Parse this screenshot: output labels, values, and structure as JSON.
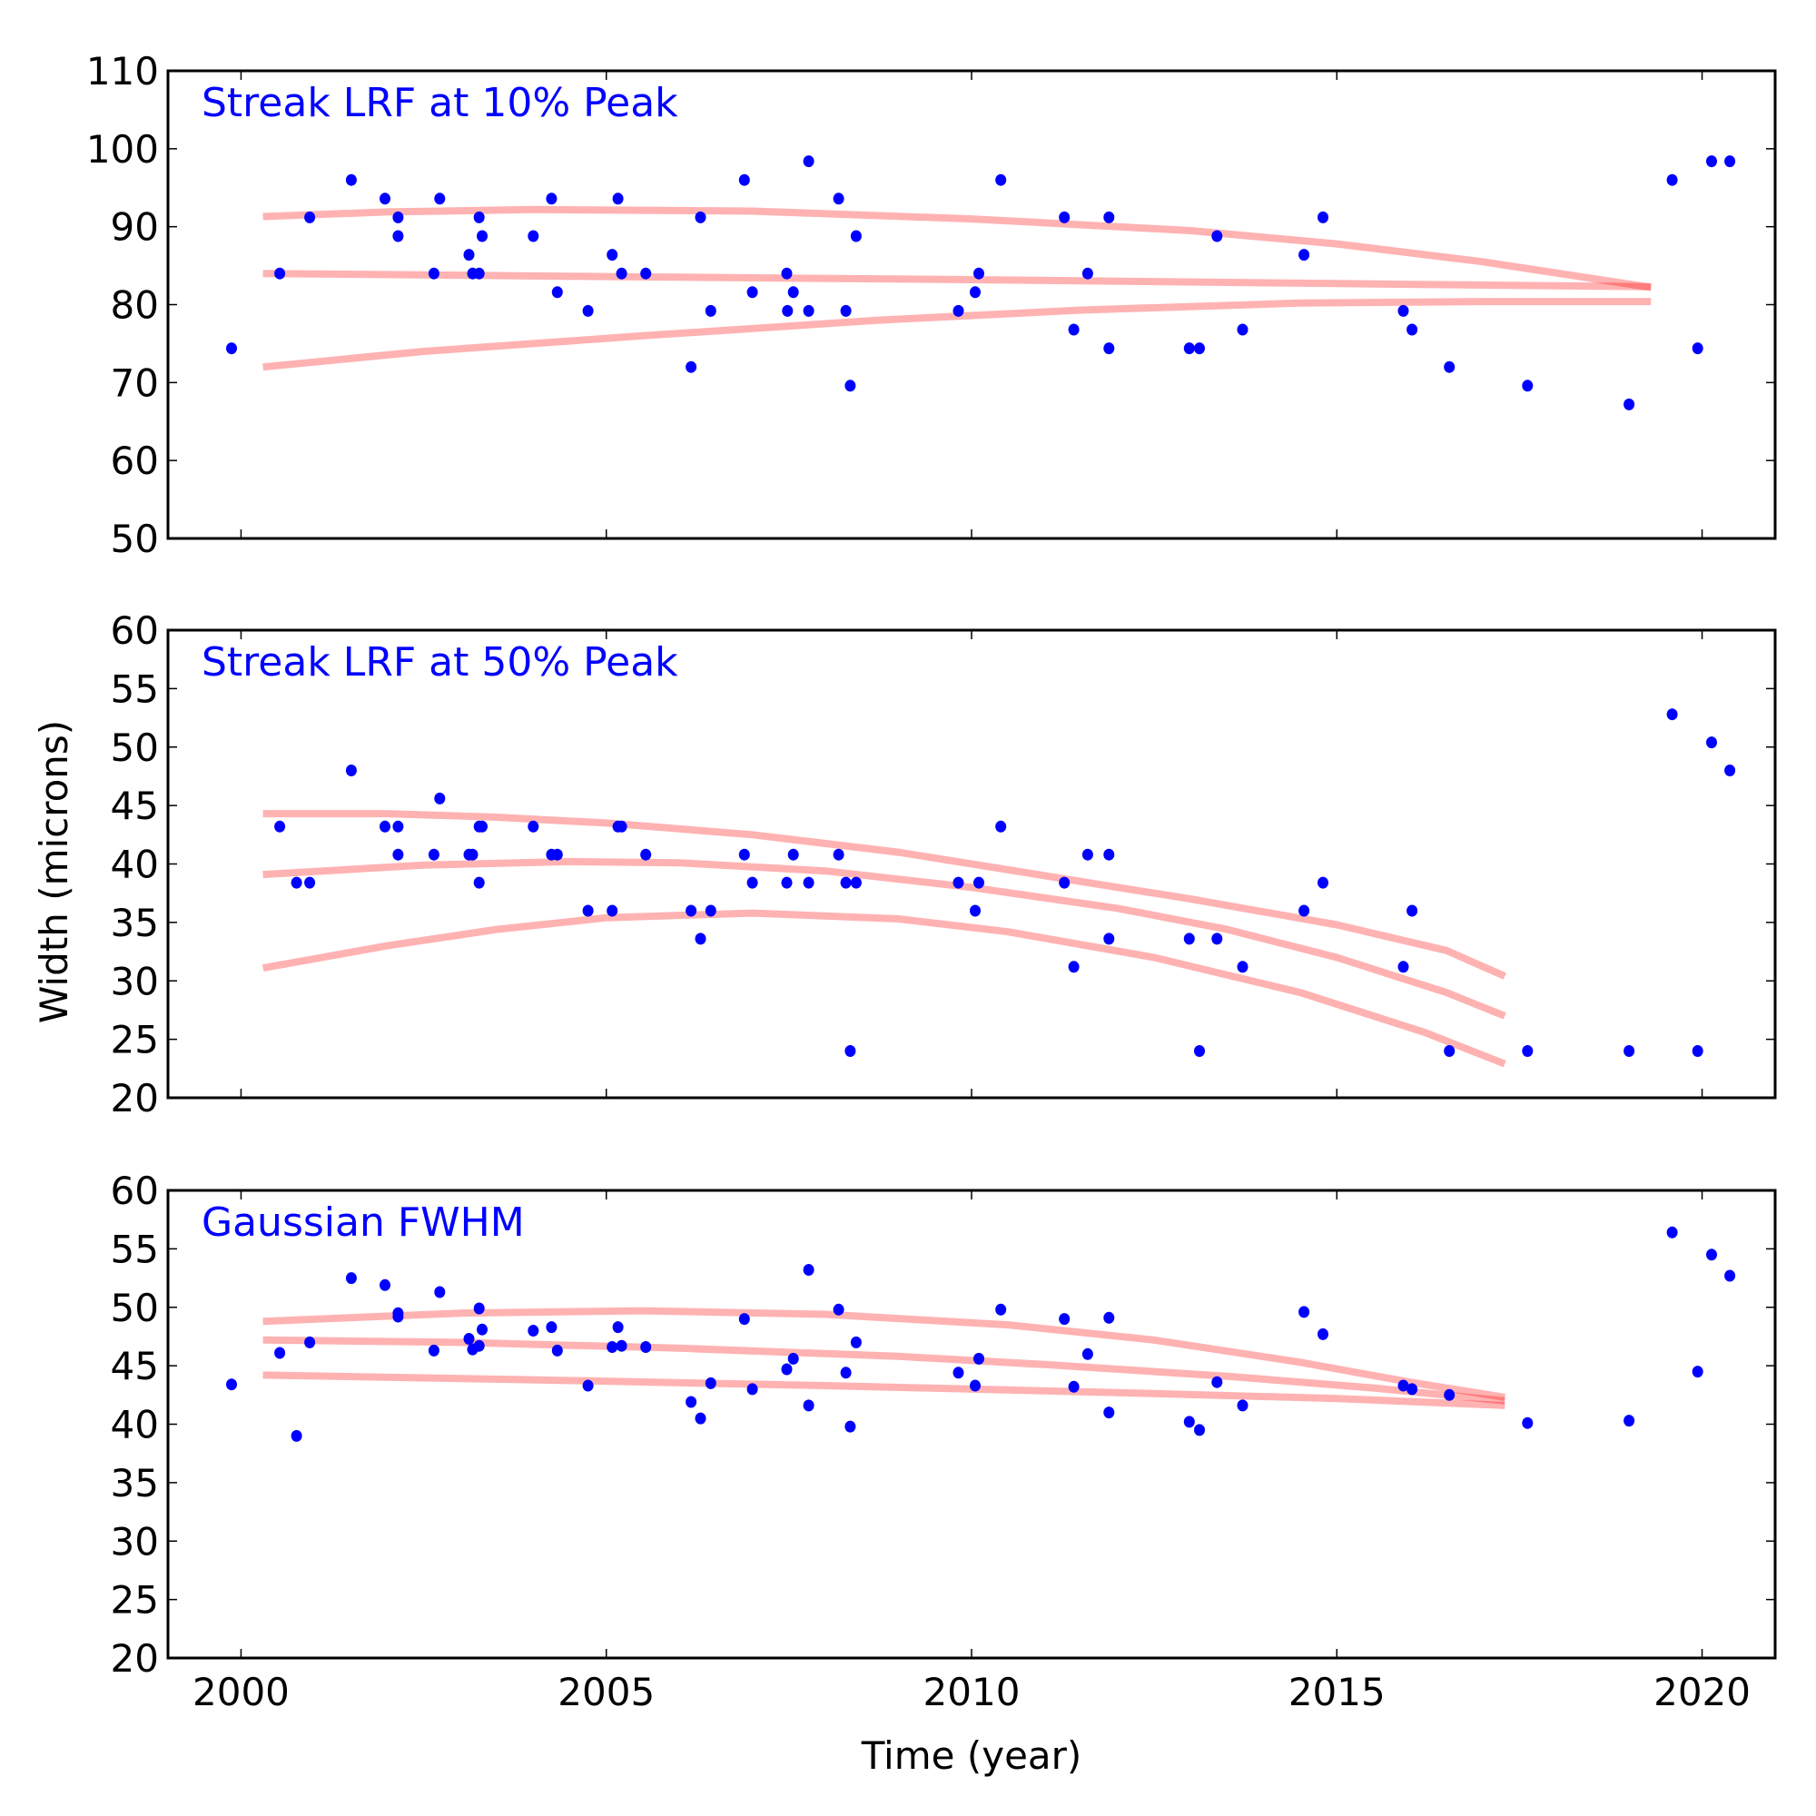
{
  "chart_data": [
    {
      "type": "scatter",
      "title": "Streak LRF at 10% Peak",
      "xlabel": "",
      "ylabel": "",
      "xlim": [
        1999,
        2021
      ],
      "ylim": [
        50,
        110
      ],
      "yticks": [
        "50",
        "60",
        "70",
        "80",
        "90",
        "100",
        "110"
      ],
      "ytick_values": [
        50,
        60,
        70,
        80,
        90,
        100,
        110
      ],
      "xtick_values": [
        2000,
        2005,
        2010,
        2015,
        2020
      ],
      "show_xtick_labels": false,
      "title_color": "#0000ff",
      "point_color": "#0000ff",
      "fit_color": "#ff0000",
      "points": [
        [
          1999.87,
          74.4
        ],
        [
          2000.53,
          84.0
        ],
        [
          2000.94,
          91.2
        ],
        [
          2001.51,
          96.0
        ],
        [
          2001.97,
          93.6
        ],
        [
          2002.15,
          91.2
        ],
        [
          2002.15,
          88.8
        ],
        [
          2002.64,
          84.0
        ],
        [
          2002.72,
          93.6
        ],
        [
          2003.12,
          86.4
        ],
        [
          2003.17,
          84.0
        ],
        [
          2003.26,
          84.0
        ],
        [
          2003.26,
          91.2
        ],
        [
          2003.3,
          88.8
        ],
        [
          2004.0,
          88.8
        ],
        [
          2004.25,
          93.6
        ],
        [
          2004.33,
          81.6
        ],
        [
          2004.75,
          79.2
        ],
        [
          2005.08,
          86.4
        ],
        [
          2005.16,
          93.6
        ],
        [
          2005.21,
          84.0
        ],
        [
          2005.54,
          84.0
        ],
        [
          2006.16,
          72.0
        ],
        [
          2006.29,
          91.2
        ],
        [
          2006.43,
          79.2
        ],
        [
          2006.89,
          96.0
        ],
        [
          2007.0,
          81.6
        ],
        [
          2007.47,
          84.0
        ],
        [
          2007.48,
          79.2
        ],
        [
          2007.56,
          81.6
        ],
        [
          2007.77,
          79.2
        ],
        [
          2007.77,
          98.4
        ],
        [
          2008.18,
          93.6
        ],
        [
          2008.28,
          79.2
        ],
        [
          2008.34,
          69.6
        ],
        [
          2008.42,
          88.8
        ],
        [
          2009.82,
          79.2
        ],
        [
          2010.05,
          81.6
        ],
        [
          2010.1,
          84.0
        ],
        [
          2010.4,
          96.0
        ],
        [
          2011.27,
          91.2
        ],
        [
          2011.4,
          76.8
        ],
        [
          2011.59,
          84.0
        ],
        [
          2011.88,
          91.2
        ],
        [
          2011.88,
          74.4
        ],
        [
          2012.98,
          74.4
        ],
        [
          2013.12,
          74.4
        ],
        [
          2013.36,
          88.8
        ],
        [
          2013.71,
          76.8
        ],
        [
          2014.55,
          86.4
        ],
        [
          2014.81,
          91.2
        ],
        [
          2015.91,
          79.2
        ],
        [
          2016.03,
          76.8
        ],
        [
          2016.54,
          72.0
        ],
        [
          2017.61,
          69.6
        ],
        [
          2019.0,
          67.2
        ],
        [
          2019.59,
          96.0
        ],
        [
          2019.94,
          74.4
        ],
        [
          2020.13,
          98.4
        ],
        [
          2020.38,
          98.4
        ]
      ],
      "fits": [
        {
          "name": "upper",
          "x": [
            2000.3,
            2002,
            2004,
            2007,
            2010,
            2013,
            2015,
            2017,
            2019.3
          ],
          "y": [
            91.3,
            91.9,
            92.2,
            92.0,
            91.0,
            89.5,
            87.8,
            85.5,
            82.2
          ]
        },
        {
          "name": "center",
          "x": [
            2000.3,
            2005,
            2010,
            2015,
            2019.3
          ],
          "y": [
            84.0,
            83.6,
            83.2,
            82.7,
            82.3
          ]
        },
        {
          "name": "lower",
          "x": [
            2000.3,
            2002.5,
            2005.5,
            2008.7,
            2011.5,
            2014.5,
            2017,
            2019.3
          ],
          "y": [
            72.0,
            74.0,
            76.0,
            78.0,
            79.3,
            80.2,
            80.4,
            80.4
          ]
        }
      ]
    },
    {
      "type": "scatter",
      "title": "Streak LRF at 50% Peak",
      "xlabel": "",
      "ylabel": "Width (microns)",
      "xlim": [
        1999,
        2021
      ],
      "ylim": [
        20,
        60
      ],
      "yticks": [
        "20",
        "25",
        "30",
        "35",
        "40",
        "45",
        "50",
        "55",
        "60"
      ],
      "ytick_values": [
        20,
        25,
        30,
        35,
        40,
        45,
        50,
        55,
        60
      ],
      "xtick_values": [
        2000,
        2005,
        2010,
        2015,
        2020
      ],
      "show_xtick_labels": false,
      "title_color": "#0000ff",
      "point_color": "#0000ff",
      "fit_color": "#ff0000",
      "points": [
        [
          2000.53,
          43.2
        ],
        [
          2000.76,
          38.4
        ],
        [
          2000.94,
          38.4
        ],
        [
          2001.51,
          48.0
        ],
        [
          2001.97,
          43.2
        ],
        [
          2002.15,
          43.2
        ],
        [
          2002.15,
          40.8
        ],
        [
          2002.64,
          40.8
        ],
        [
          2002.72,
          45.6
        ],
        [
          2003.12,
          40.8
        ],
        [
          2003.17,
          40.8
        ],
        [
          2003.26,
          38.4
        ],
        [
          2003.26,
          43.2
        ],
        [
          2003.3,
          43.2
        ],
        [
          2004.0,
          43.2
        ],
        [
          2004.25,
          40.8
        ],
        [
          2004.33,
          40.8
        ],
        [
          2004.75,
          36.0
        ],
        [
          2005.08,
          36.0
        ],
        [
          2005.16,
          43.2
        ],
        [
          2005.21,
          43.2
        ],
        [
          2005.54,
          40.8
        ],
        [
          2006.16,
          36.0
        ],
        [
          2006.29,
          33.6
        ],
        [
          2006.43,
          36.0
        ],
        [
          2006.89,
          40.8
        ],
        [
          2007.0,
          38.4
        ],
        [
          2007.47,
          38.4
        ],
        [
          2007.56,
          40.8
        ],
        [
          2007.77,
          38.4
        ],
        [
          2008.18,
          40.8
        ],
        [
          2008.28,
          38.4
        ],
        [
          2008.34,
          24.0
        ],
        [
          2008.42,
          38.4
        ],
        [
          2009.82,
          38.4
        ],
        [
          2010.05,
          36.0
        ],
        [
          2010.1,
          38.4
        ],
        [
          2010.4,
          43.2
        ],
        [
          2011.27,
          38.4
        ],
        [
          2011.4,
          31.2
        ],
        [
          2011.59,
          40.8
        ],
        [
          2011.88,
          40.8
        ],
        [
          2011.88,
          33.6
        ],
        [
          2012.98,
          33.6
        ],
        [
          2013.12,
          24.0
        ],
        [
          2013.36,
          33.6
        ],
        [
          2013.71,
          31.2
        ],
        [
          2014.55,
          36.0
        ],
        [
          2014.81,
          38.4
        ],
        [
          2015.91,
          31.2
        ],
        [
          2016.03,
          36.0
        ],
        [
          2016.54,
          24.0
        ],
        [
          2017.61,
          24.0
        ],
        [
          2019.0,
          24.0
        ],
        [
          2019.59,
          52.8
        ],
        [
          2019.94,
          24.0
        ],
        [
          2020.13,
          50.4
        ],
        [
          2020.38,
          48.0
        ]
      ],
      "fits": [
        {
          "name": "upper",
          "x": [
            2000.3,
            2002,
            2003.5,
            2005,
            2007,
            2009,
            2011,
            2013,
            2015,
            2016.5,
            2017.3
          ],
          "y": [
            44.3,
            44.3,
            44.0,
            43.5,
            42.5,
            41.0,
            39.0,
            37.0,
            34.8,
            32.6,
            30.4
          ]
        },
        {
          "name": "center",
          "x": [
            2000.3,
            2002.5,
            2004.5,
            2006,
            2008,
            2010,
            2012,
            2013.5,
            2015,
            2016.5,
            2017.3
          ],
          "y": [
            39.1,
            39.9,
            40.2,
            40.1,
            39.4,
            38.0,
            36.2,
            34.4,
            32.0,
            29.0,
            27.0
          ]
        },
        {
          "name": "lower",
          "x": [
            2000.3,
            2002,
            2003.5,
            2005,
            2007,
            2009,
            2010.5,
            2012.5,
            2014.5,
            2016.2,
            2017.3
          ],
          "y": [
            31.1,
            33.0,
            34.4,
            35.4,
            35.8,
            35.3,
            34.2,
            32.0,
            29.0,
            25.6,
            22.9
          ]
        }
      ]
    },
    {
      "type": "scatter",
      "title": "Gaussian FWHM",
      "xlabel": "Time (year)",
      "ylabel": "",
      "xlim": [
        1999,
        2021
      ],
      "ylim": [
        20,
        60
      ],
      "yticks": [
        "20",
        "25",
        "30",
        "35",
        "40",
        "45",
        "50",
        "55",
        "60"
      ],
      "ytick_values": [
        20,
        25,
        30,
        35,
        40,
        45,
        50,
        55,
        60
      ],
      "xticks": [
        "2000",
        "2005",
        "2010",
        "2015",
        "2020"
      ],
      "xtick_values": [
        2000,
        2005,
        2010,
        2015,
        2020
      ],
      "show_xtick_labels": true,
      "title_color": "#0000ff",
      "point_color": "#0000ff",
      "fit_color": "#ff0000",
      "points": [
        [
          1999.87,
          43.4
        ],
        [
          2000.53,
          46.1
        ],
        [
          2000.76,
          39.0
        ],
        [
          2000.94,
          47.0
        ],
        [
          2001.51,
          52.5
        ],
        [
          2001.97,
          51.9
        ],
        [
          2002.15,
          49.5
        ],
        [
          2002.15,
          49.2
        ],
        [
          2002.64,
          46.3
        ],
        [
          2002.72,
          51.3
        ],
        [
          2003.12,
          47.3
        ],
        [
          2003.17,
          46.4
        ],
        [
          2003.26,
          49.9
        ],
        [
          2003.26,
          46.7
        ],
        [
          2003.3,
          48.1
        ],
        [
          2004.0,
          48.0
        ],
        [
          2004.25,
          48.3
        ],
        [
          2004.33,
          46.3
        ],
        [
          2004.75,
          43.3
        ],
        [
          2005.08,
          46.6
        ],
        [
          2005.16,
          48.3
        ],
        [
          2005.21,
          46.7
        ],
        [
          2005.54,
          46.6
        ],
        [
          2006.16,
          41.9
        ],
        [
          2006.29,
          40.5
        ],
        [
          2006.43,
          43.5
        ],
        [
          2006.89,
          49.0
        ],
        [
          2007.0,
          43.0
        ],
        [
          2007.47,
          44.7
        ],
        [
          2007.56,
          45.6
        ],
        [
          2007.77,
          53.2
        ],
        [
          2007.77,
          41.6
        ],
        [
          2008.18,
          49.8
        ],
        [
          2008.28,
          44.4
        ],
        [
          2008.34,
          39.8
        ],
        [
          2008.42,
          47.0
        ],
        [
          2009.82,
          44.4
        ],
        [
          2010.05,
          43.3
        ],
        [
          2010.1,
          45.6
        ],
        [
          2010.4,
          49.8
        ],
        [
          2011.27,
          49.0
        ],
        [
          2011.4,
          43.2
        ],
        [
          2011.59,
          46.0
        ],
        [
          2011.88,
          49.1
        ],
        [
          2011.88,
          41.0
        ],
        [
          2012.98,
          40.2
        ],
        [
          2013.12,
          39.5
        ],
        [
          2013.36,
          43.6
        ],
        [
          2013.71,
          41.6
        ],
        [
          2014.55,
          49.6
        ],
        [
          2014.81,
          47.7
        ],
        [
          2015.91,
          43.3
        ],
        [
          2016.03,
          43.0
        ],
        [
          2016.54,
          42.5
        ],
        [
          2017.61,
          40.1
        ],
        [
          2019.0,
          40.3
        ],
        [
          2019.59,
          56.4
        ],
        [
          2019.94,
          44.5
        ],
        [
          2020.13,
          54.5
        ],
        [
          2020.38,
          52.7
        ]
      ],
      "fits": [
        {
          "name": "upper",
          "x": [
            2000.3,
            2003,
            2005.5,
            2008,
            2010.5,
            2012.5,
            2014.5,
            2016,
            2017.3
          ],
          "y": [
            48.8,
            49.5,
            49.7,
            49.4,
            48.5,
            47.2,
            45.3,
            43.6,
            42.3
          ]
        },
        {
          "name": "center",
          "x": [
            2000.3,
            2003,
            2006,
            2009,
            2011,
            2013.5,
            2015.5,
            2017.3
          ],
          "y": [
            47.2,
            47.0,
            46.5,
            45.8,
            45.1,
            44.1,
            43.1,
            42.0
          ]
        },
        {
          "name": "lower",
          "x": [
            2000.3,
            2004,
            2008,
            2012,
            2015,
            2017.3
          ],
          "y": [
            44.2,
            43.8,
            43.3,
            42.7,
            42.2,
            41.6
          ]
        }
      ]
    }
  ]
}
